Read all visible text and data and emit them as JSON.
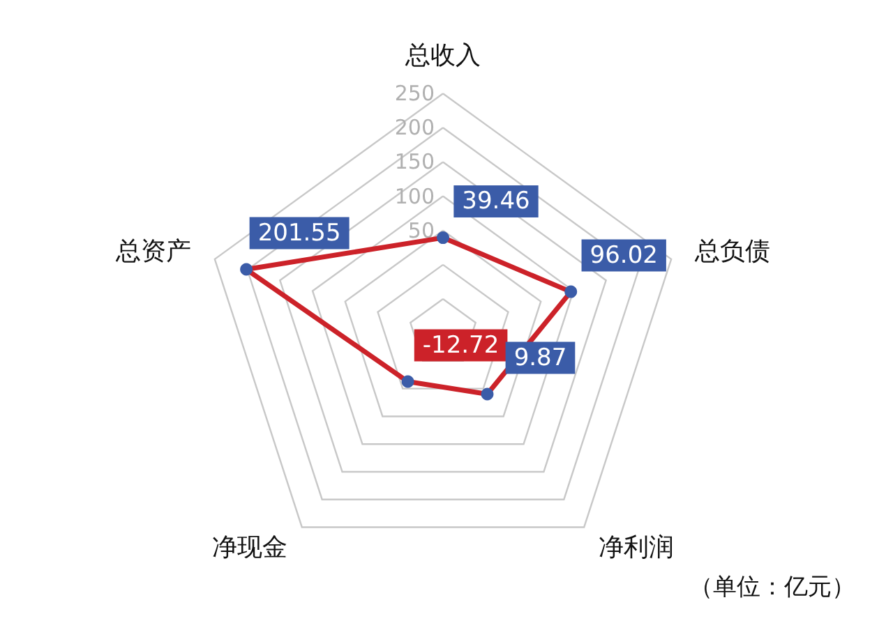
{
  "chart_data": {
    "type": "radar",
    "categories": [
      "总收入",
      "总负债",
      "净利润",
      "净现金",
      "总资产"
    ],
    "series": [
      {
        "color": "#cc2229",
        "values": [
          39.46,
          96.02,
          9.87,
          -12.72,
          201.55
        ]
      }
    ],
    "colors": [
      "#3b5ca8",
      "#3b5ca8",
      "#3b5ca8",
      "#cc2229",
      "#3b5ca8"
    ],
    "ylim": [
      -100,
      250
    ],
    "yticks": [
      50,
      100,
      150,
      200,
      250
    ],
    "data_labels": true,
    "marker": "circle",
    "grid": true,
    "annotations": [
      "（单位：亿元）"
    ]
  }
}
